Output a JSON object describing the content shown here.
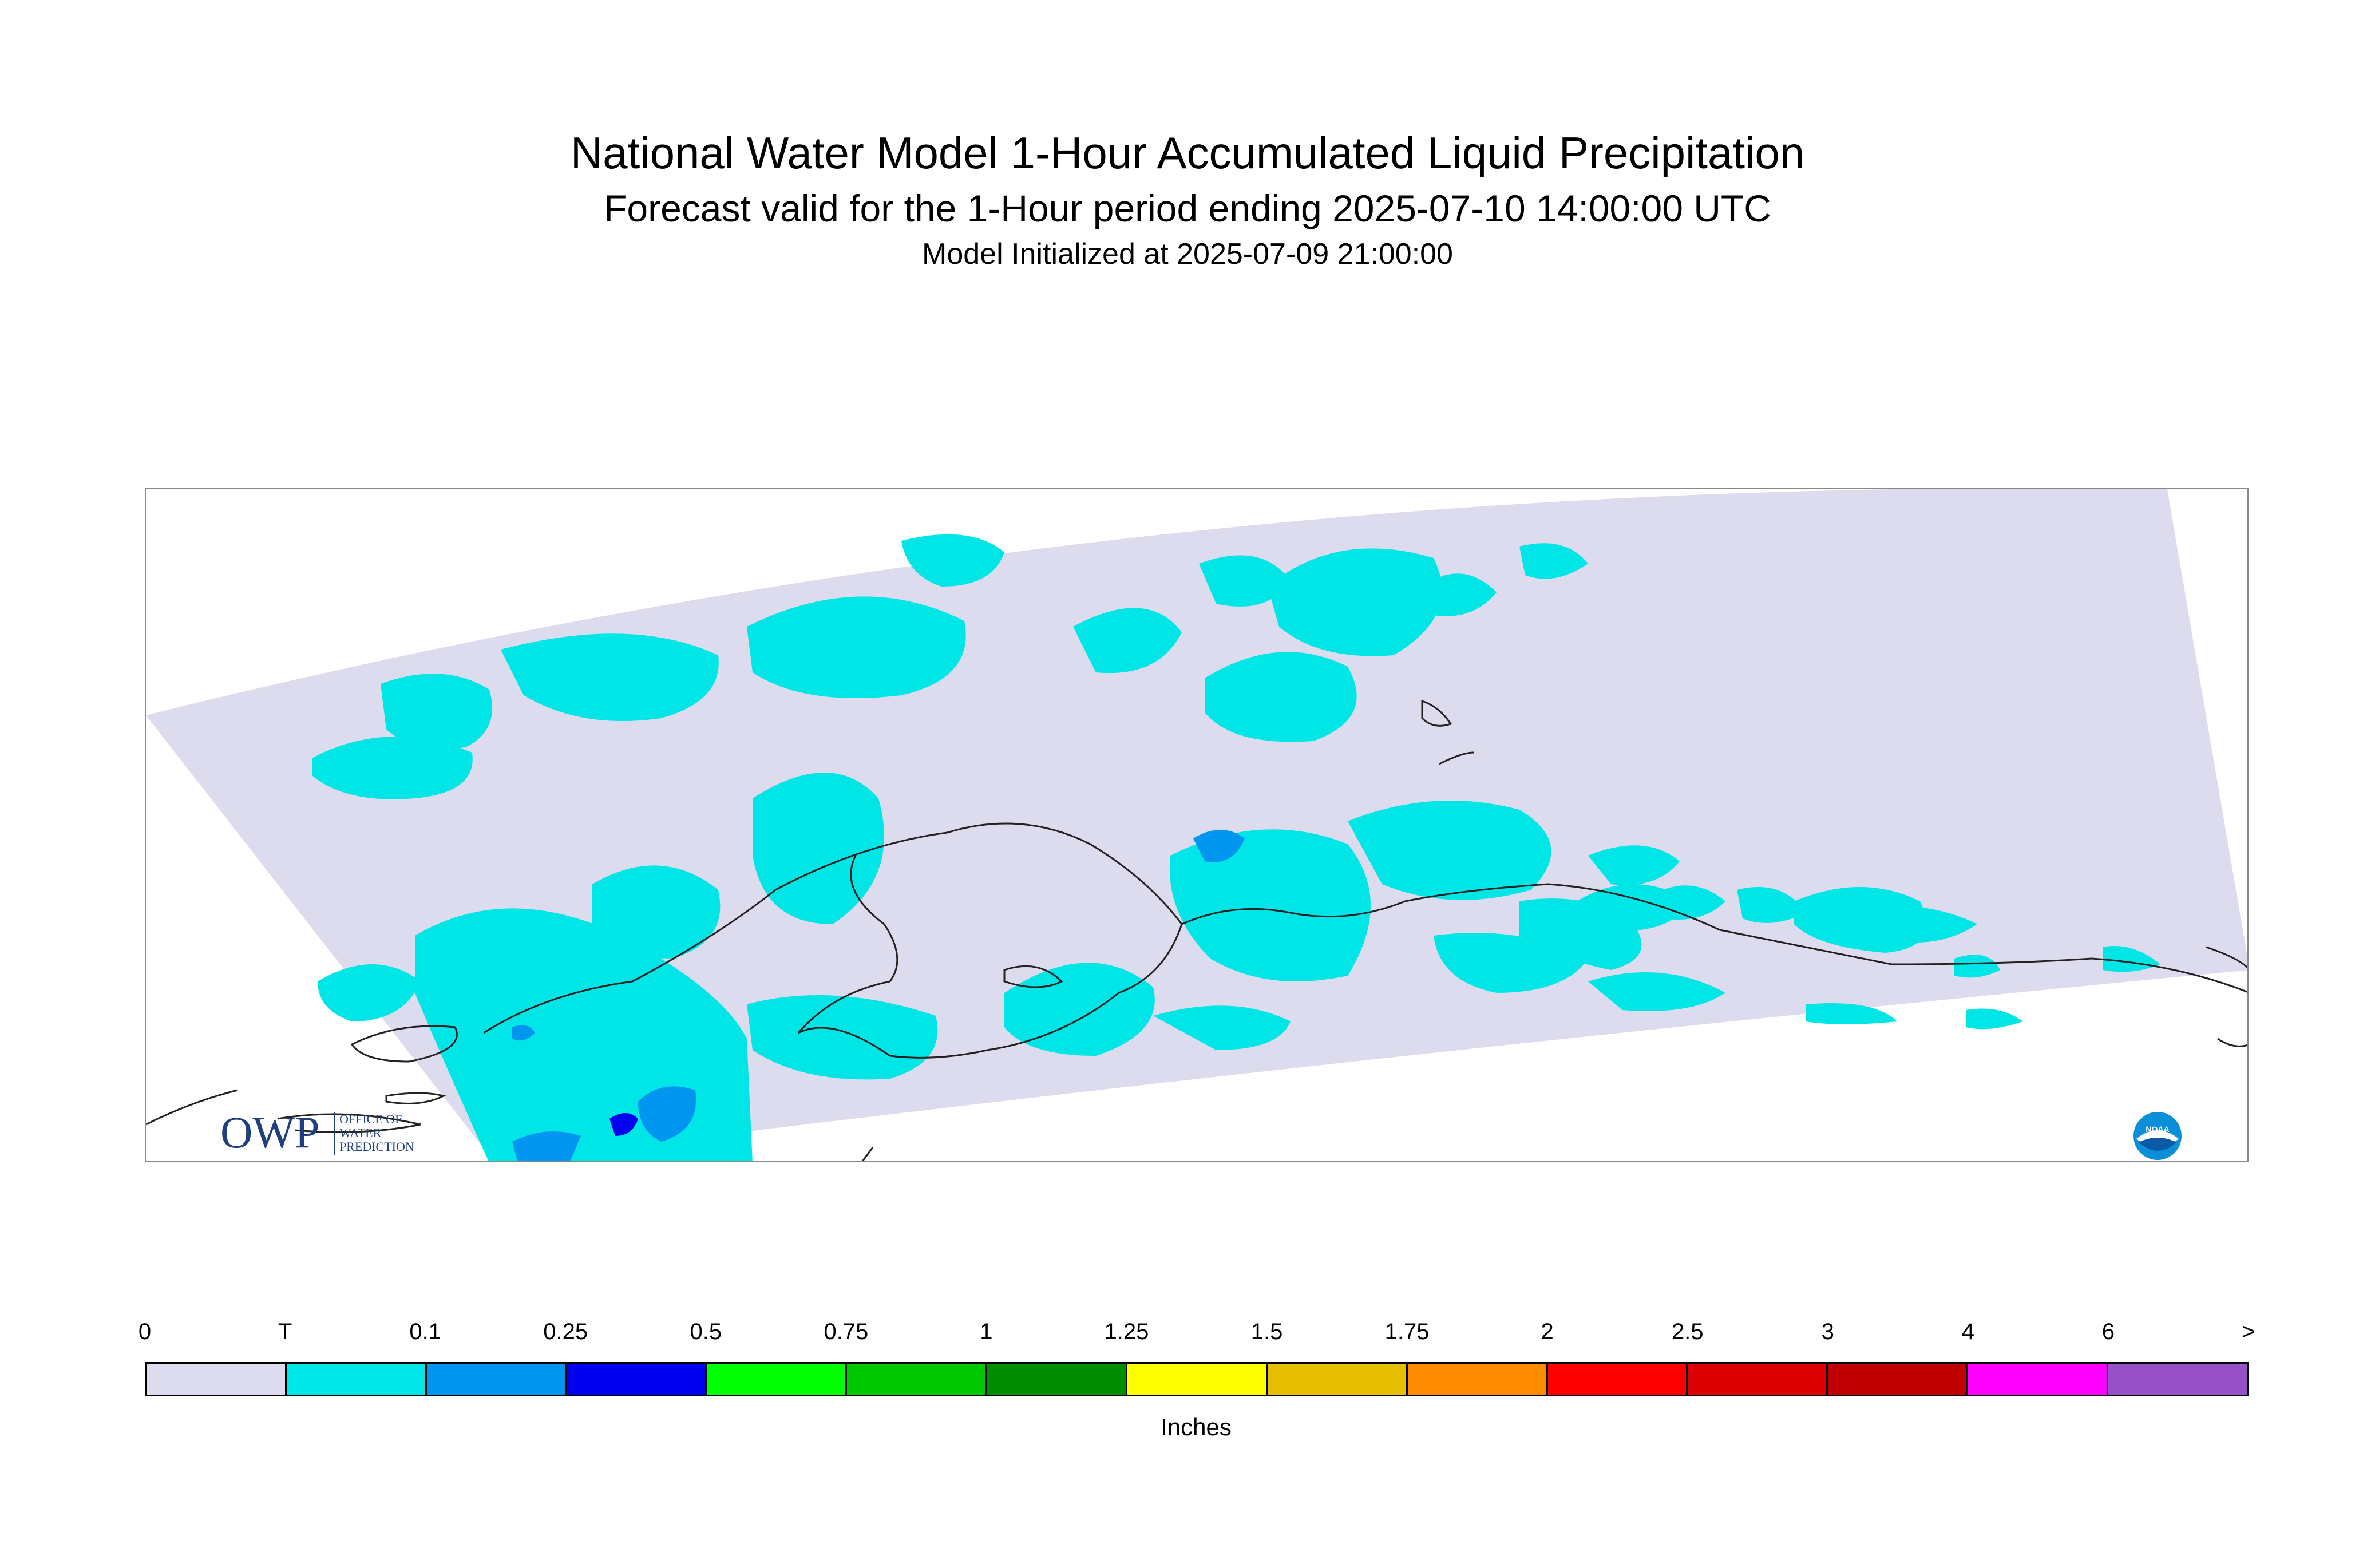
{
  "title": {
    "main": "National Water Model 1-Hour Accumulated Liquid Precipitation",
    "forecast": "Forecast valid for the 1-Hour period ending 2025-07-10 14:00:00 UTC",
    "initialized": "Model Initialized at 2025-07-09 21:00:00"
  },
  "map": {
    "domain_color": "#dcdcee",
    "logos": {
      "owp": {
        "mark": "OWP",
        "text_lines": [
          "OFFICE OF",
          "WATER",
          "PREDICTION"
        ]
      },
      "noaa": {
        "text": "NOAA"
      }
    }
  },
  "legend": {
    "units_label": "Inches",
    "ticks": [
      "0",
      "T",
      "0.1",
      "0.25",
      "0.5",
      "0.75",
      "1",
      "1.25",
      "1.5",
      "1.75",
      "2",
      "2.5",
      "3",
      "4",
      "6",
      ">"
    ],
    "colors": [
      "#dcdcee",
      "#00e6e6",
      "#0096f0",
      "#0000f0",
      "#00ff00",
      "#00c800",
      "#008c00",
      "#ffff00",
      "#e6be00",
      "#ff8c00",
      "#ff0000",
      "#dc0000",
      "#be0000",
      "#ff00ff",
      "#9650c8"
    ]
  }
}
